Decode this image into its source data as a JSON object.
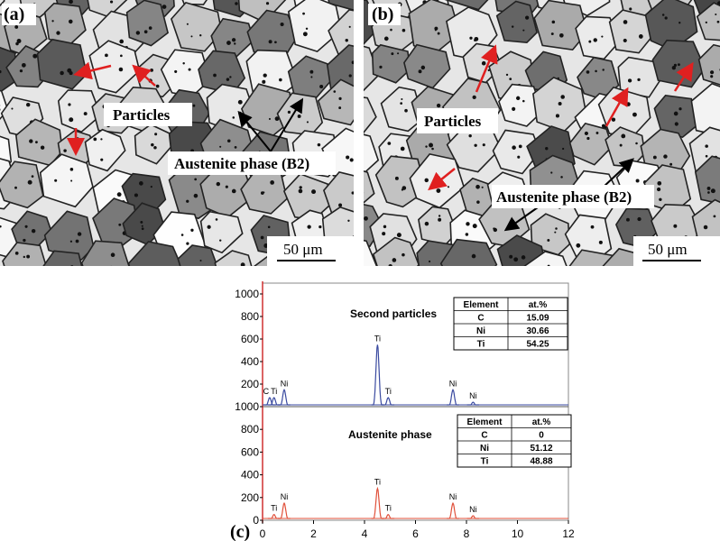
{
  "panels": [
    {
      "label": "(a)",
      "annotations": [
        "Particles",
        "Austenite phase (B2)"
      ],
      "scale_bar": "50 μm"
    },
    {
      "label": "(b)",
      "annotations": [
        "Particles",
        "Austenite phase (B2)"
      ],
      "scale_bar": "50 μm"
    }
  ],
  "spectra": {
    "label": "(c)",
    "xlim": [
      0,
      12
    ],
    "xticks": [
      0,
      2,
      4,
      6,
      8,
      10,
      12
    ],
    "top": {
      "title": "Second particles",
      "ylim": [
        0,
        1000
      ],
      "yticks": [
        200,
        400,
        600,
        800,
        1000
      ],
      "peaks": [
        {
          "label": "C",
          "x": 0.28,
          "y": 80
        },
        {
          "label": "Ti",
          "x": 0.45,
          "y": 80
        },
        {
          "label": "Ni",
          "x": 0.85,
          "y": 150
        },
        {
          "label": "Ti",
          "x": 4.51,
          "y": 550
        },
        {
          "label": "Ti",
          "x": 4.93,
          "y": 80
        },
        {
          "label": "Ni",
          "x": 7.47,
          "y": 150
        },
        {
          "label": "Ni",
          "x": 8.26,
          "y": 40
        }
      ],
      "table": {
        "header": [
          "Element",
          "at.%"
        ],
        "rows": [
          [
            "C",
            "15.09"
          ],
          [
            "Ni",
            "30.66"
          ],
          [
            "Ti",
            "54.25"
          ]
        ]
      }
    },
    "bottom": {
      "title": "Austenite phase",
      "ylim": [
        0,
        1000
      ],
      "yticks": [
        0,
        200,
        400,
        600,
        800,
        1000
      ],
      "peaks": [
        {
          "label": "Ti",
          "x": 0.45,
          "y": 50
        },
        {
          "label": "Ni",
          "x": 0.85,
          "y": 150
        },
        {
          "label": "Ti",
          "x": 4.51,
          "y": 280
        },
        {
          "label": "Ti",
          "x": 4.93,
          "y": 50
        },
        {
          "label": "Ni",
          "x": 7.47,
          "y": 150
        },
        {
          "label": "Ni",
          "x": 8.26,
          "y": 40
        }
      ],
      "table": {
        "header": [
          "Element",
          "at.%"
        ],
        "rows": [
          [
            "C",
            "0"
          ],
          [
            "Ni",
            "51.12"
          ],
          [
            "Ti",
            "48.88"
          ]
        ]
      }
    }
  }
}
